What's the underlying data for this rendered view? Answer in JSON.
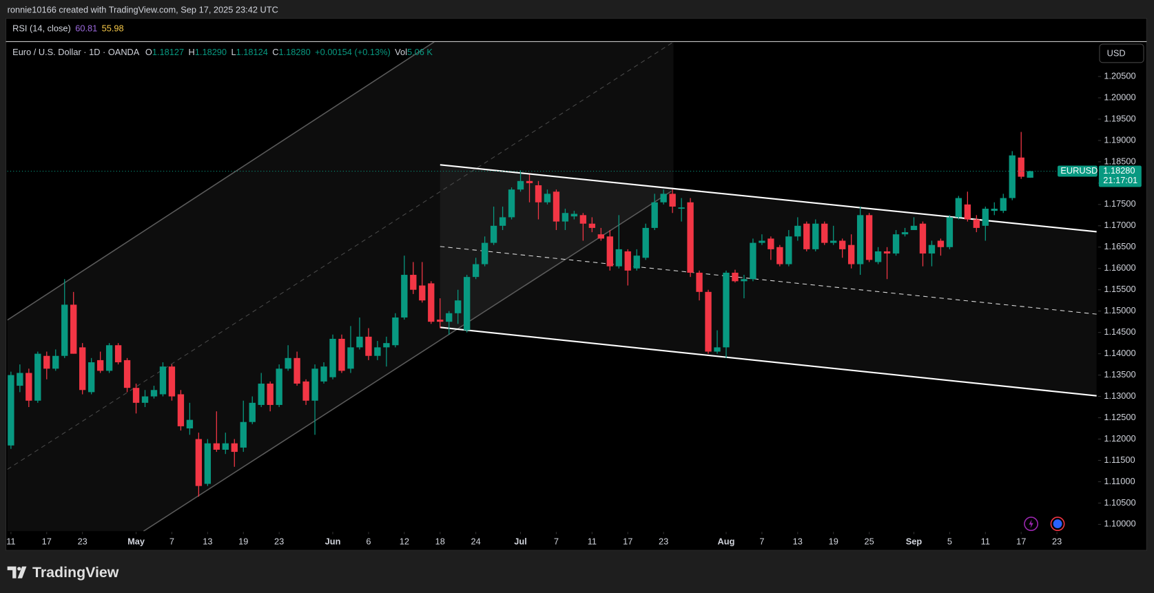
{
  "header": {
    "author_line": "ronnie10166 created with TradingView.com, Sep 17, 2025 23:42 UTC",
    "brand": "TradingView"
  },
  "indicator": {
    "name": "RSI (14, close)",
    "values": [
      "60.81",
      "55.98"
    ]
  },
  "chart_data": {
    "type": "candlestick",
    "symbol_title": "Euro / U.S. Dollar · 1D · OANDA",
    "ohlc_legend": [
      {
        "label": "O",
        "value": "1.18127"
      },
      {
        "label": "H",
        "value": "1.18290"
      },
      {
        "label": "L",
        "value": "1.18124"
      },
      {
        "label": "C",
        "value": "1.18280"
      }
    ],
    "change": "+0.00154 (+0.13%)",
    "volume_label": "Vol",
    "volume": "5.06 K",
    "currency": "USD",
    "symbol": "EURUSD",
    "last_price": {
      "value": 1.1828,
      "label": "1.18280"
    },
    "countdown": "21:17:01",
    "up_color": "#089981",
    "down_color": "#f23645",
    "open": [
      1.1185,
      1.1325,
      1.1355,
      1.129,
      1.1395,
      1.1365,
      1.1395,
      1.1515,
      1.1415,
      1.131,
      1.1385,
      1.136,
      1.142,
      1.1385,
      1.132,
      1.1285,
      1.13,
      1.1305,
      1.137,
      1.1305,
      1.1225,
      1.12,
      1.1095,
      1.119,
      1.1175,
      1.119,
      1.118,
      1.124,
      1.128,
      1.133,
      1.128,
      1.1365,
      1.139,
      1.1335,
      1.129,
      1.1335,
      1.1345,
      1.1435,
      1.1365,
      1.1415,
      1.144,
      1.1395,
      1.1415,
      1.142,
      1.1485,
      1.1585,
      1.156,
      1.1565,
      1.148,
      1.1475,
      1.1495,
      1.1455,
      1.158,
      1.161,
      1.166,
      1.17,
      1.172,
      1.1785,
      1.1805,
      1.1795,
      1.1755,
      1.178,
      1.171,
      1.1722,
      1.1725,
      1.1705,
      1.168,
      1.1675,
      1.1605,
      1.164,
      1.16,
      1.1625,
      1.1695,
      1.1755,
      1.1775,
      1.174,
      1.1755,
      1.159,
      1.1545,
      1.1405,
      1.1415,
      1.159,
      1.157,
      1.1575,
      1.166,
      1.167,
      1.165,
      1.161,
      1.1675,
      1.1705,
      1.1645,
      1.1705,
      1.166,
      1.1665,
      1.1655,
      1.161,
      1.1725,
      1.1615,
      1.164,
      1.1635,
      1.168,
      1.169,
      1.1705,
      1.1635,
      1.1665,
      1.165,
      1.172,
      1.175,
      1.1715,
      1.17,
      1.1735,
      1.1735,
      1.1765,
      1.186,
      1.18127
    ],
    "high": [
      1.1358,
      1.1375,
      1.1365,
      1.1405,
      1.1405,
      1.141,
      1.1575,
      1.1545,
      1.1425,
      1.139,
      1.1405,
      1.1425,
      1.1425,
      1.139,
      1.133,
      1.1315,
      1.1325,
      1.138,
      1.1375,
      1.1315,
      1.1285,
      1.1215,
      1.12,
      1.1265,
      1.1215,
      1.12,
      1.129,
      1.13,
      1.1355,
      1.1335,
      1.1375,
      1.142,
      1.1405,
      1.134,
      1.1375,
      1.138,
      1.1445,
      1.1445,
      1.1465,
      1.1485,
      1.146,
      1.143,
      1.144,
      1.1495,
      1.163,
      1.1615,
      1.1615,
      1.157,
      1.153,
      1.15,
      1.155,
      1.1585,
      1.1625,
      1.1675,
      1.1745,
      1.1745,
      1.179,
      1.183,
      1.182,
      1.1805,
      1.1785,
      1.1785,
      1.174,
      1.1735,
      1.173,
      1.172,
      1.1695,
      1.169,
      1.1725,
      1.1645,
      1.1645,
      1.1705,
      1.1775,
      1.1785,
      1.1785,
      1.1765,
      1.1765,
      1.1595,
      1.155,
      1.1455,
      1.1595,
      1.1597,
      1.1585,
      1.167,
      1.168,
      1.1675,
      1.1655,
      1.169,
      1.172,
      1.171,
      1.1715,
      1.171,
      1.17,
      1.167,
      1.168,
      1.1745,
      1.173,
      1.165,
      1.165,
      1.169,
      1.1695,
      1.172,
      1.171,
      1.1665,
      1.167,
      1.1725,
      1.177,
      1.178,
      1.1725,
      1.1745,
      1.1755,
      1.1775,
      1.1875,
      1.192,
      1.1829
    ],
    "low": [
      1.1177,
      1.131,
      1.1275,
      1.1285,
      1.134,
      1.136,
      1.139,
      1.14,
      1.1305,
      1.1305,
      1.1355,
      1.1355,
      1.1375,
      1.131,
      1.126,
      1.1275,
      1.1295,
      1.13,
      1.129,
      1.122,
      1.121,
      1.1065,
      1.109,
      1.117,
      1.1165,
      1.1135,
      1.117,
      1.1235,
      1.1275,
      1.1265,
      1.1275,
      1.136,
      1.1325,
      1.128,
      1.121,
      1.133,
      1.134,
      1.1355,
      1.1355,
      1.141,
      1.1385,
      1.1385,
      1.137,
      1.1415,
      1.148,
      1.154,
      1.152,
      1.147,
      1.146,
      1.1445,
      1.147,
      1.145,
      1.1575,
      1.1605,
      1.1655,
      1.169,
      1.1715,
      1.178,
      1.1755,
      1.1715,
      1.175,
      1.169,
      1.169,
      1.1715,
      1.1665,
      1.1685,
      1.1665,
      1.1595,
      1.16,
      1.156,
      1.1595,
      1.162,
      1.169,
      1.175,
      1.173,
      1.171,
      1.158,
      1.1525,
      1.14,
      1.14,
      1.139,
      1.1567,
      1.153,
      1.157,
      1.1655,
      1.162,
      1.1605,
      1.1605,
      1.1665,
      1.164,
      1.164,
      1.1655,
      1.1655,
      1.1625,
      1.16,
      1.1585,
      1.1615,
      1.161,
      1.1575,
      1.163,
      1.1675,
      1.169,
      1.1605,
      1.1605,
      1.163,
      1.1645,
      1.1715,
      1.171,
      1.1685,
      1.1665,
      1.1725,
      1.173,
      1.176,
      1.181,
      1.18124
    ],
    "close": [
      1.135,
      1.1355,
      1.129,
      1.14,
      1.1365,
      1.1395,
      1.1515,
      1.14,
      1.1315,
      1.138,
      1.136,
      1.142,
      1.138,
      1.132,
      1.1285,
      1.13,
      1.1315,
      1.137,
      1.13,
      1.123,
      1.1245,
      1.109,
      1.119,
      1.1175,
      1.119,
      1.117,
      1.124,
      1.1285,
      1.133,
      1.128,
      1.1365,
      1.139,
      1.133,
      1.129,
      1.1365,
      1.137,
      1.1435,
      1.136,
      1.1415,
      1.144,
      1.1395,
      1.1415,
      1.1425,
      1.1485,
      1.1585,
      1.155,
      1.1525,
      1.1475,
      1.1475,
      1.1495,
      1.1525,
      1.158,
      1.161,
      1.166,
      1.17,
      1.172,
      1.1785,
      1.1805,
      1.18,
      1.1755,
      1.1775,
      1.171,
      1.173,
      1.1728,
      1.1705,
      1.1695,
      1.167,
      1.1605,
      1.1645,
      1.1595,
      1.163,
      1.1695,
      1.1755,
      1.1775,
      1.1745,
      1.1743,
      1.159,
      1.1545,
      1.1405,
      1.1415,
      1.159,
      1.157,
      1.1575,
      1.166,
      1.1665,
      1.1645,
      1.161,
      1.1675,
      1.17,
      1.1645,
      1.1705,
      1.166,
      1.1665,
      1.1645,
      1.161,
      1.1725,
      1.162,
      1.164,
      1.1635,
      1.168,
      1.1685,
      1.17,
      1.1635,
      1.1655,
      1.165,
      1.172,
      1.1765,
      1.1715,
      1.1695,
      1.174,
      1.174,
      1.1765,
      1.1865,
      1.1815,
      1.1828
    ],
    "xlim": [
      -0.4,
      121.6
    ],
    "xticks": [
      {
        "value": 0,
        "label": "11"
      },
      {
        "value": 4,
        "label": "17"
      },
      {
        "value": 8,
        "label": "23"
      },
      {
        "value": 14,
        "label": "May"
      },
      {
        "value": 18,
        "label": "7"
      },
      {
        "value": 22,
        "label": "13"
      },
      {
        "value": 26,
        "label": "19"
      },
      {
        "value": 30,
        "label": "23"
      },
      {
        "value": 36,
        "label": "Jun"
      },
      {
        "value": 40,
        "label": "6"
      },
      {
        "value": 44,
        "label": "12"
      },
      {
        "value": 48,
        "label": "18"
      },
      {
        "value": 52,
        "label": "24"
      },
      {
        "value": 57,
        "label": "Jul"
      },
      {
        "value": 61,
        "label": "7"
      },
      {
        "value": 65,
        "label": "11"
      },
      {
        "value": 69,
        "label": "17"
      },
      {
        "value": 73,
        "label": "23"
      },
      {
        "value": 80,
        "label": "Aug"
      },
      {
        "value": 84,
        "label": "7"
      },
      {
        "value": 88,
        "label": "13"
      },
      {
        "value": 92,
        "label": "19"
      },
      {
        "value": 96,
        "label": "25"
      },
      {
        "value": 101,
        "label": "Sep"
      },
      {
        "value": 105,
        "label": "5"
      },
      {
        "value": 109,
        "label": "11"
      },
      {
        "value": 113,
        "label": "17"
      },
      {
        "value": 117,
        "label": "23"
      }
    ],
    "ylim": [
      1.0984,
      1.2131
    ],
    "yticks": [
      {
        "value": 1.205,
        "label": "1.20500"
      },
      {
        "value": 1.2,
        "label": "1.20000"
      },
      {
        "value": 1.195,
        "label": "1.19500"
      },
      {
        "value": 1.19,
        "label": "1.19000"
      },
      {
        "value": 1.185,
        "label": "1.18500"
      },
      {
        "value": 1.18,
        "label": "1.18000"
      },
      {
        "value": 1.175,
        "label": "1.17500"
      },
      {
        "value": 1.17,
        "label": "1.17000"
      },
      {
        "value": 1.165,
        "label": "1.16500"
      },
      {
        "value": 1.16,
        "label": "1.16000"
      },
      {
        "value": 1.155,
        "label": "1.15500"
      },
      {
        "value": 1.15,
        "label": "1.15000"
      },
      {
        "value": 1.145,
        "label": "1.14500"
      },
      {
        "value": 1.14,
        "label": "1.14000"
      },
      {
        "value": 1.135,
        "label": "1.13500"
      },
      {
        "value": 1.13,
        "label": "1.13000"
      },
      {
        "value": 1.125,
        "label": "1.12500"
      },
      {
        "value": 1.12,
        "label": "1.12000"
      },
      {
        "value": 1.115,
        "label": "1.11500"
      },
      {
        "value": 1.11,
        "label": "1.11000"
      },
      {
        "value": 1.105,
        "label": "1.10500"
      },
      {
        "value": 1.1,
        "label": "1.10000"
      }
    ],
    "grid": false
  }
}
